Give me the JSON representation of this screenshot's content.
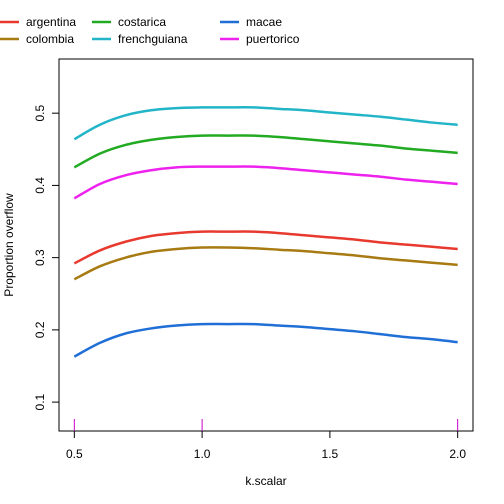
{
  "chart_data": {
    "type": "line",
    "title": "",
    "xlabel": "k.scalar",
    "ylabel": "Proportion overflow",
    "xlim": [
      0.44,
      2.06
    ],
    "ylim": [
      0.06,
      0.575
    ],
    "x_ticks": [
      0.5,
      1.0,
      1.5,
      2.0
    ],
    "x_tick_labels": [
      "0.5",
      "1.0",
      "1.5",
      "2.0"
    ],
    "y_ticks": [
      0.1,
      0.2,
      0.3,
      0.4,
      0.5
    ],
    "y_tick_labels": [
      "0.1",
      "0.2",
      "0.3",
      "0.4",
      "0.5"
    ],
    "grid": false,
    "legend_position": "top-left, outside plot, 3 columns",
    "rug_marks_x": [
      0.5,
      1.0,
      2.0
    ],
    "rug_color": "#CC00CC",
    "x": [
      0.5,
      0.6,
      0.7,
      0.8,
      0.9,
      1.0,
      1.1,
      1.2,
      1.3,
      1.4,
      1.5,
      1.6,
      1.7,
      1.8,
      1.9,
      2.0
    ],
    "series": [
      {
        "name": "argentina",
        "color": "#E8392E",
        "values": [
          0.292,
          0.31,
          0.322,
          0.33,
          0.334,
          0.336,
          0.336,
          0.336,
          0.334,
          0.331,
          0.328,
          0.325,
          0.321,
          0.318,
          0.315,
          0.312
        ]
      },
      {
        "name": "colombia",
        "color": "#A87A12",
        "values": [
          0.27,
          0.288,
          0.3,
          0.308,
          0.312,
          0.314,
          0.314,
          0.313,
          0.311,
          0.309,
          0.306,
          0.303,
          0.299,
          0.296,
          0.293,
          0.29
        ]
      },
      {
        "name": "costarica",
        "color": "#22AA22",
        "values": [
          0.425,
          0.444,
          0.456,
          0.463,
          0.467,
          0.469,
          0.469,
          0.469,
          0.467,
          0.464,
          0.461,
          0.458,
          0.455,
          0.451,
          0.448,
          0.445
        ]
      },
      {
        "name": "frenchguiana",
        "color": "#22B5C8",
        "values": [
          0.464,
          0.484,
          0.497,
          0.504,
          0.507,
          0.508,
          0.508,
          0.508,
          0.506,
          0.504,
          0.501,
          0.498,
          0.495,
          0.491,
          0.487,
          0.484
        ]
      },
      {
        "name": "macae",
        "color": "#1F6FD6",
        "values": [
          0.163,
          0.182,
          0.195,
          0.202,
          0.206,
          0.208,
          0.208,
          0.208,
          0.206,
          0.204,
          0.201,
          0.198,
          0.194,
          0.19,
          0.187,
          0.183
        ]
      },
      {
        "name": "puertorico",
        "color": "#EE22EE",
        "values": [
          0.382,
          0.402,
          0.414,
          0.421,
          0.425,
          0.426,
          0.426,
          0.426,
          0.424,
          0.421,
          0.418,
          0.415,
          0.412,
          0.408,
          0.405,
          0.402
        ]
      }
    ]
  }
}
